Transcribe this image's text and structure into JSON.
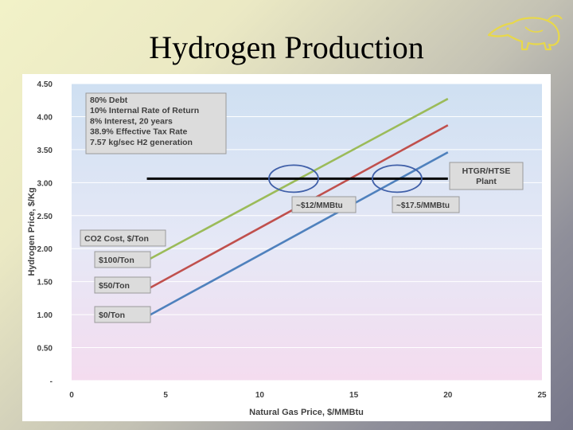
{
  "slide": {
    "title": "Hydrogen Production"
  },
  "logo": {
    "icon": "anteater-icon",
    "color": "#e8d84a"
  },
  "chart_data": {
    "type": "line",
    "title": "",
    "xlabel": "Natural Gas Price, $/MMBtu",
    "ylabel": "Hydrogen Price, $/Kg",
    "xlim": [
      0,
      25
    ],
    "ylim": [
      0,
      4.5
    ],
    "x_ticks": [
      "0",
      "5",
      "10",
      "15",
      "20",
      "25"
    ],
    "y_ticks": [
      "-",
      "0.50",
      "1.00",
      "1.50",
      "2.00",
      "2.50",
      "3.00",
      "3.50",
      "4.00",
      "4.50"
    ],
    "grid": true,
    "series": [
      {
        "name": "$100/Ton",
        "color": "#9bbb59",
        "x": [
          4,
          20
        ],
        "y": [
          1.82,
          4.27
        ]
      },
      {
        "name": "$50/Ton",
        "color": "#c0504d",
        "x": [
          4,
          20
        ],
        "y": [
          1.38,
          3.87
        ]
      },
      {
        "name": "$0/Ton",
        "color": "#4f81bd",
        "x": [
          4,
          20
        ],
        "y": [
          0.97,
          3.46
        ]
      }
    ],
    "reference_line": {
      "label": "HTGR/HTSE Plant",
      "label_lines": [
        "HTGR/HTSE",
        "Plant"
      ],
      "y": 3.06,
      "x": [
        4,
        20
      ],
      "color": "#000000"
    },
    "intersections": [
      {
        "label": "~$12/MMBtu",
        "x": 11.8,
        "y": 3.06
      },
      {
        "label": "~$17.5/MMBtu",
        "x": 17.3,
        "y": 3.06
      }
    ],
    "assumptions": [
      "80% Debt",
      "10% Internal Rate of Return",
      "8% Interest, 20 years",
      "38.9% Effective Tax Rate",
      "7.57 kg/sec H2 generation"
    ],
    "co2_heading": "CO2 Cost, $/Ton",
    "series_labels": [
      "$100/Ton",
      "$50/Ton",
      "$0/Ton"
    ]
  }
}
